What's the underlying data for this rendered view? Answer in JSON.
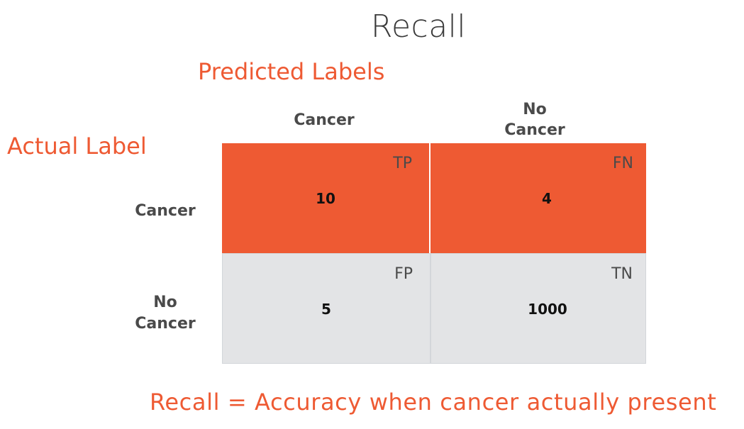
{
  "title": "Recall",
  "predicted_axis_label": "Predicted Labels",
  "actual_axis_label": "Actual Label",
  "columns": [
    {
      "line1": "Cancer",
      "line2": ""
    },
    {
      "line1": "No",
      "line2": "Cancer"
    }
  ],
  "rows": [
    {
      "line1": "Cancer",
      "line2": ""
    },
    {
      "line1": "No",
      "line2": "Cancer"
    }
  ],
  "cells": {
    "tp": {
      "tag": "TP",
      "value": "10"
    },
    "fn": {
      "tag": "FN",
      "value": "4"
    },
    "fp": {
      "tag": "FP",
      "value": "5"
    },
    "tn": {
      "tag": "TN",
      "value": "1000"
    }
  },
  "formula": "Recall = Accuracy when cancer actually present",
  "colors": {
    "accent": "#ee5a33",
    "neutral_cell": "#e3e4e6",
    "text_dark": "#4a4a4a"
  }
}
